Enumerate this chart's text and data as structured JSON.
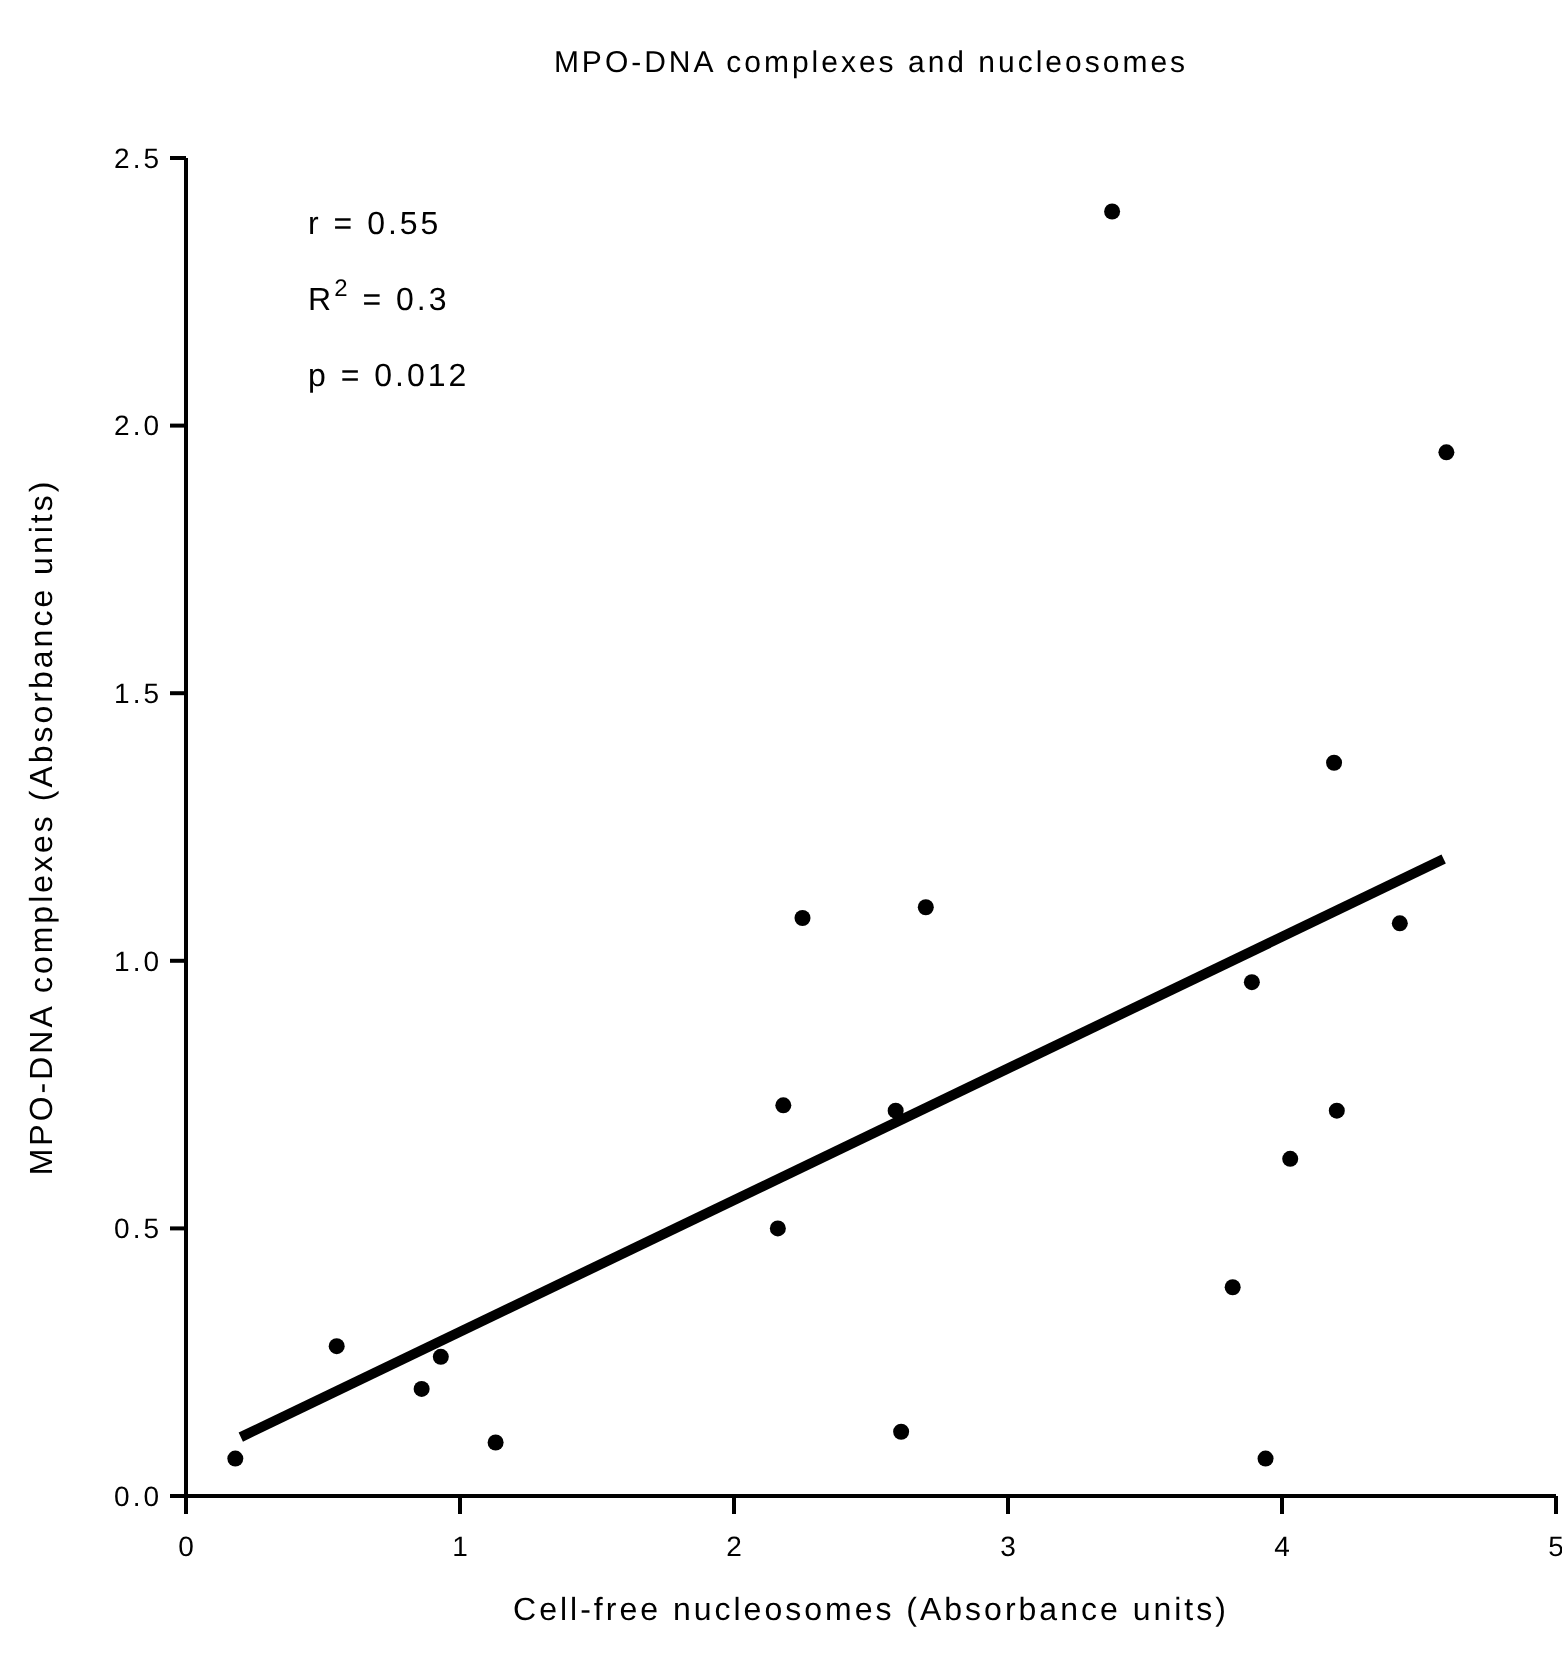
{
  "chart_data": {
    "type": "scatter",
    "title": "MPO-DNA complexes and nucleosomes",
    "xlabel": "Cell-free nucleosomes (Absorbance units)",
    "ylabel": "MPO-DNA complexes (Absorbance units)",
    "annotations": [
      "r = 0.55",
      "R$^{2}$ = 0.3",
      "p = 0.012"
    ],
    "xlim": [
      0,
      5
    ],
    "xticks": [
      0,
      1,
      2,
      3,
      4,
      5
    ],
    "ylim": [
      0,
      2.5
    ],
    "yticks": [
      {
        "value": 0,
        "label": "0.0"
      },
      {
        "value": 0.5,
        "label": "0.5"
      },
      {
        "value": 1,
        "label": "1.0"
      },
      {
        "value": 1.5,
        "label": "1.5"
      },
      {
        "value": 2,
        "label": "2.0"
      },
      {
        "value": 2.5,
        "label": "2.5"
      }
    ],
    "grid": false,
    "marker": "circle",
    "series": [
      {
        "color": "#000000",
        "x": [
          0.18,
          0.55,
          0.86,
          0.93,
          1.13,
          2.16,
          2.18,
          2.25,
          2.7,
          2.59,
          2.61,
          3.89,
          4.43,
          4.2,
          4.03,
          3.82,
          3.94,
          3.38,
          4.6,
          4.19
        ],
        "values": [
          0.07,
          0.28,
          0.2,
          0.26,
          0.1,
          0.5,
          0.73,
          1.08,
          1.1,
          0.72,
          0.12,
          0.96,
          1.07,
          0.72,
          0.63,
          0.39,
          0.07,
          2.4,
          1.95,
          1.37
        ]
      },
      {
        "type": "line",
        "color": "#000000",
        "marker": "none",
        "line_style": "solid",
        "x": [
          0.2,
          4.59
        ],
        "values": [
          0.11,
          1.19
        ]
      }
    ]
  }
}
